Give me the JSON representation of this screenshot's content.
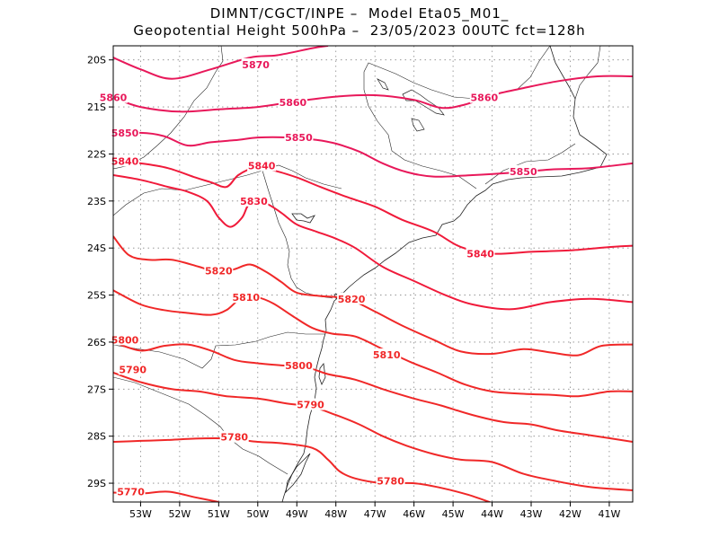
{
  "title": {
    "line1": "DIMNT/CGCT/INPE –  Model Eta05_M01_",
    "line2": "Geopotential Height 500hPa –  23/05/2023 00UTC fct=128h"
  },
  "axes": {
    "lat_labels": [
      "20S",
      "21S",
      "22S",
      "23S",
      "24S",
      "25S",
      "26S",
      "27S",
      "28S",
      "29S"
    ],
    "lon_labels": [
      "53W",
      "52W",
      "51W",
      "50W",
      "49W",
      "48W",
      "47W",
      "46W",
      "45W",
      "44W",
      "43W",
      "42W",
      "41W"
    ]
  },
  "chart_data": {
    "type": "contour",
    "variable": "Geopotential Height 500hPa",
    "lon_range": [
      -53.7,
      -40.4
    ],
    "lat_range": [
      -29.4,
      -19.7
    ],
    "grid": true,
    "contours": [
      {
        "level": "5870",
        "color": "#e8185a",
        "points": [
          [
            -53.7,
            -19.95
          ],
          [
            -53,
            -20.2
          ],
          [
            -52.2,
            -20.4
          ],
          [
            -51.2,
            -20.2
          ],
          [
            -50.2,
            -19.95
          ],
          [
            -49.5,
            -19.9
          ],
          [
            -48.6,
            -19.75
          ],
          [
            -48.2,
            -19.7
          ]
        ],
        "labels": [
          [
            -50.05,
            -20.1
          ]
        ]
      },
      {
        "level": "5860",
        "color": "#e8185a",
        "points": [
          [
            -53.7,
            -20.8
          ],
          [
            -53,
            -21
          ],
          [
            -52,
            -21.1
          ],
          [
            -51,
            -21.05
          ],
          [
            -50,
            -21
          ],
          [
            -49,
            -20.88
          ],
          [
            -48,
            -20.78
          ],
          [
            -47,
            -20.75
          ],
          [
            -46,
            -20.85
          ],
          [
            -45.3,
            -21.02
          ],
          [
            -44.7,
            -20.95
          ],
          [
            -44,
            -20.75
          ],
          [
            -43.2,
            -20.6
          ],
          [
            -42.3,
            -20.45
          ],
          [
            -41.3,
            -20.35
          ],
          [
            -40.4,
            -20.35
          ]
        ],
        "labels": [
          [
            -53.7,
            -20.8
          ],
          [
            -49.1,
            -20.9
          ],
          [
            -44.2,
            -20.8
          ]
        ]
      },
      {
        "level": "5850",
        "color": "#e8185a",
        "points": [
          [
            -53.7,
            -21.6
          ],
          [
            -53,
            -21.55
          ],
          [
            -52.4,
            -21.62
          ],
          [
            -51.8,
            -21.82
          ],
          [
            -51.2,
            -21.75
          ],
          [
            -50.5,
            -21.7
          ],
          [
            -50,
            -21.65
          ],
          [
            -49.2,
            -21.65
          ],
          [
            -48.5,
            -21.7
          ],
          [
            -48,
            -21.78
          ],
          [
            -47.4,
            -21.95
          ],
          [
            -46.8,
            -22.2
          ],
          [
            -46.2,
            -22.38
          ],
          [
            -45.5,
            -22.48
          ],
          [
            -44.5,
            -22.45
          ],
          [
            -43.5,
            -22.4
          ],
          [
            -42.5,
            -22.33
          ],
          [
            -41.5,
            -22.3
          ],
          [
            -40.4,
            -22.2
          ]
        ],
        "labels": [
          [
            -53.4,
            -21.55
          ],
          [
            -48.95,
            -21.65
          ],
          [
            -43.2,
            -22.37
          ]
        ]
      },
      {
        "level": "5840",
        "color": "#f01a3a",
        "points": [
          [
            -53.7,
            -22.15
          ],
          [
            -53,
            -22.2
          ],
          [
            -52.3,
            -22.3
          ],
          [
            -51.6,
            -22.5
          ],
          [
            -51.2,
            -22.6
          ],
          [
            -50.8,
            -22.7
          ],
          [
            -50.5,
            -22.45
          ],
          [
            -50.1,
            -22.3
          ],
          [
            -49.6,
            -22.35
          ],
          [
            -49,
            -22.5
          ],
          [
            -48.4,
            -22.7
          ],
          [
            -47.7,
            -22.92
          ],
          [
            -47,
            -23.12
          ],
          [
            -46.3,
            -23.4
          ],
          [
            -45.5,
            -23.65
          ],
          [
            -44.8,
            -23.98
          ],
          [
            -44,
            -24.12
          ],
          [
            -43,
            -24.08
          ],
          [
            -42,
            -24.05
          ],
          [
            -41,
            -23.98
          ],
          [
            -40.4,
            -23.95
          ]
        ],
        "labels": [
          [
            -53.4,
            -22.15
          ],
          [
            -49.9,
            -22.25
          ],
          [
            -44.3,
            -24.12
          ]
        ]
      },
      {
        "level": "5830",
        "color": "#f01a3a",
        "points": [
          [
            -53.7,
            -22.45
          ],
          [
            -53,
            -22.55
          ],
          [
            -52.3,
            -22.7
          ],
          [
            -51.8,
            -22.8
          ],
          [
            -51.3,
            -23.0
          ],
          [
            -51,
            -23.35
          ],
          [
            -50.7,
            -23.55
          ],
          [
            -50.4,
            -23.35
          ],
          [
            -50.2,
            -23.05
          ],
          [
            -49.8,
            -23.05
          ],
          [
            -49.4,
            -23.25
          ],
          [
            -49,
            -23.5
          ],
          [
            -48.5,
            -23.65
          ],
          [
            -48,
            -23.8
          ],
          [
            -47.5,
            -24
          ],
          [
            -46.8,
            -24.4
          ],
          [
            -46,
            -24.7
          ],
          [
            -45.2,
            -25
          ],
          [
            -44.5,
            -25.2
          ],
          [
            -43.5,
            -25.3
          ],
          [
            -42.5,
            -25.15
          ],
          [
            -41.5,
            -25.08
          ],
          [
            -40.4,
            -25.15
          ]
        ],
        "labels": [
          [
            -50.1,
            -23
          ]
        ]
      },
      {
        "level": "5820",
        "color": "#f02828",
        "points": [
          [
            -53.7,
            -23.75
          ],
          [
            -53.3,
            -24.15
          ],
          [
            -52.8,
            -24.25
          ],
          [
            -52.2,
            -24.25
          ],
          [
            -51.5,
            -24.4
          ],
          [
            -51,
            -24.52
          ],
          [
            -50.6,
            -24.45
          ],
          [
            -50.2,
            -24.35
          ],
          [
            -49.8,
            -24.5
          ],
          [
            -49.4,
            -24.72
          ],
          [
            -49,
            -24.95
          ],
          [
            -48.4,
            -25.02
          ],
          [
            -47.7,
            -25.08
          ],
          [
            -47,
            -25.35
          ],
          [
            -46.3,
            -25.65
          ],
          [
            -45.5,
            -25.95
          ],
          [
            -44.8,
            -26.2
          ],
          [
            -44,
            -26.25
          ],
          [
            -43.2,
            -26.15
          ],
          [
            -42.5,
            -26.22
          ],
          [
            -41.8,
            -26.28
          ],
          [
            -41.2,
            -26.08
          ],
          [
            -40.4,
            -26.05
          ]
        ],
        "labels": [
          [
            -51,
            -24.48
          ],
          [
            -47.6,
            -25.08
          ]
        ]
      },
      {
        "level": "5810",
        "color": "#f02828",
        "points": [
          [
            -53.7,
            -24.9
          ],
          [
            -53,
            -25.2
          ],
          [
            -52.4,
            -25.32
          ],
          [
            -51.8,
            -25.38
          ],
          [
            -51.2,
            -25.42
          ],
          [
            -50.8,
            -25.32
          ],
          [
            -50.4,
            -25.05
          ],
          [
            -50,
            -25.05
          ],
          [
            -49.6,
            -25.18
          ],
          [
            -49.1,
            -25.45
          ],
          [
            -48.6,
            -25.7
          ],
          [
            -48.1,
            -25.82
          ],
          [
            -47.5,
            -25.88
          ],
          [
            -46.8,
            -26.15
          ],
          [
            -46.1,
            -26.42
          ],
          [
            -45.4,
            -26.65
          ],
          [
            -44.7,
            -26.9
          ],
          [
            -44,
            -27.05
          ],
          [
            -43.2,
            -27.1
          ],
          [
            -42.5,
            -27.12
          ],
          [
            -41.8,
            -27.15
          ],
          [
            -41,
            -27.05
          ],
          [
            -40.4,
            -27.05
          ]
        ],
        "labels": [
          [
            -50.3,
            -25.05
          ],
          [
            -46.7,
            -26.27
          ]
        ]
      },
      {
        "level": "5800",
        "color": "#f02828",
        "points": [
          [
            -53.7,
            -26
          ],
          [
            -53,
            -26.18
          ],
          [
            -52.4,
            -26.08
          ],
          [
            -51.8,
            -26.05
          ],
          [
            -51.2,
            -26.18
          ],
          [
            -50.6,
            -26.38
          ],
          [
            -50,
            -26.45
          ],
          [
            -49.3,
            -26.5
          ],
          [
            -48.7,
            -26.55
          ],
          [
            -48.2,
            -26.68
          ],
          [
            -47.5,
            -26.8
          ],
          [
            -46.8,
            -27.0
          ],
          [
            -46,
            -27.2
          ],
          [
            -45.3,
            -27.35
          ],
          [
            -44.5,
            -27.55
          ],
          [
            -43.7,
            -27.7
          ],
          [
            -43,
            -27.75
          ],
          [
            -42.3,
            -27.88
          ],
          [
            -41.5,
            -27.98
          ],
          [
            -40.4,
            -28.12
          ]
        ],
        "labels": [
          [
            -53.4,
            -25.95
          ],
          [
            -48.95,
            -26.5
          ]
        ]
      },
      {
        "level": "5790",
        "color": "#f02828",
        "points": [
          [
            -53.7,
            -26.65
          ],
          [
            -53,
            -26.85
          ],
          [
            -52.2,
            -27.0
          ],
          [
            -51.5,
            -27.05
          ],
          [
            -50.8,
            -27.15
          ],
          [
            -50,
            -27.2
          ],
          [
            -49.3,
            -27.3
          ],
          [
            -48.6,
            -27.38
          ],
          [
            -48,
            -27.55
          ],
          [
            -47.4,
            -27.75
          ],
          [
            -46.8,
            -28.0
          ],
          [
            -46.2,
            -28.2
          ],
          [
            -45.5,
            -28.38
          ],
          [
            -44.8,
            -28.5
          ],
          [
            -44,
            -28.55
          ],
          [
            -43.2,
            -28.8
          ],
          [
            -42.4,
            -28.95
          ],
          [
            -41.5,
            -29.08
          ],
          [
            -40.4,
            -29.15
          ]
        ],
        "labels": [
          [
            -53.2,
            -26.58
          ],
          [
            -48.65,
            -27.33
          ]
        ]
      },
      {
        "level": "5780",
        "color": "#f02828",
        "points": [
          [
            -53.7,
            -28.12
          ],
          [
            -53,
            -28.1
          ],
          [
            -52.3,
            -28.08
          ],
          [
            -51.5,
            -28.05
          ],
          [
            -50.8,
            -28.05
          ],
          [
            -50,
            -28.12
          ],
          [
            -49.4,
            -28.15
          ],
          [
            -48.6,
            -28.25
          ],
          [
            -48.2,
            -28.5
          ],
          [
            -47.9,
            -28.75
          ],
          [
            -47.5,
            -28.9
          ],
          [
            -46.8,
            -29.0
          ],
          [
            -46,
            -29.0
          ],
          [
            -45.3,
            -29.1
          ],
          [
            -44.6,
            -29.25
          ],
          [
            -43.9,
            -29.45
          ]
        ],
        "labels": [
          [
            -50.6,
            -28.02
          ],
          [
            -46.6,
            -28.95
          ]
        ]
      },
      {
        "level": "5770",
        "color": "#f02828",
        "points": [
          [
            -53.7,
            -29.2
          ],
          [
            -53,
            -29.22
          ],
          [
            -52.3,
            -29.18
          ],
          [
            -51.6,
            -29.3
          ],
          [
            -51,
            -29.4
          ]
        ],
        "labels": [
          [
            -53.25,
            -29.18
          ]
        ]
      }
    ]
  }
}
